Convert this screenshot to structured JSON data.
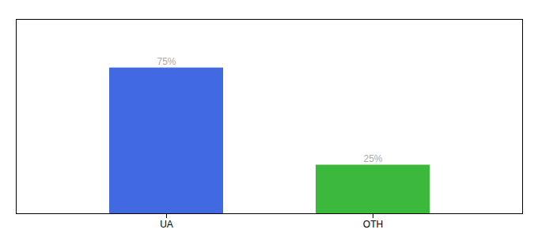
{
  "chart_data": {
    "type": "bar",
    "categories": [
      "UA",
      "OTH"
    ],
    "values": [
      75,
      25
    ],
    "value_labels": [
      "75%",
      "25%"
    ],
    "colors": [
      "#4169E1",
      "#3CB83C"
    ],
    "ylim": [
      0,
      100
    ],
    "yticks": [],
    "data_labels": true,
    "tick_labels": "x",
    "grid": false
  }
}
